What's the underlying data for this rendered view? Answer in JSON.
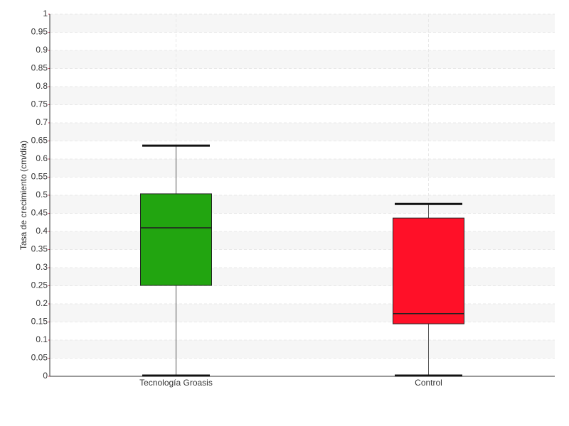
{
  "chart_data": {
    "type": "box",
    "y_label": "Tasa de crecimiento (cm/día)",
    "categories": [
      "Tecnología Groasis",
      "Control"
    ],
    "boxes": [
      {
        "min": 0,
        "q1": 0.251,
        "median": 0.41,
        "q3": 0.504,
        "max": 0.637,
        "color": "#22a510"
      },
      {
        "min": 0,
        "q1": 0.145,
        "median": 0.173,
        "q3": 0.437,
        "max": 0.476,
        "color": "#ff1028"
      }
    ],
    "ylim": [
      0,
      1
    ],
    "yticks": [
      0,
      0.05,
      0.1,
      0.15,
      0.2,
      0.25,
      0.3,
      0.35,
      0.4,
      0.45,
      0.5,
      0.55,
      0.6,
      0.65,
      0.7,
      0.75,
      0.8,
      0.85,
      0.9,
      0.95,
      1
    ],
    "grid": true
  }
}
